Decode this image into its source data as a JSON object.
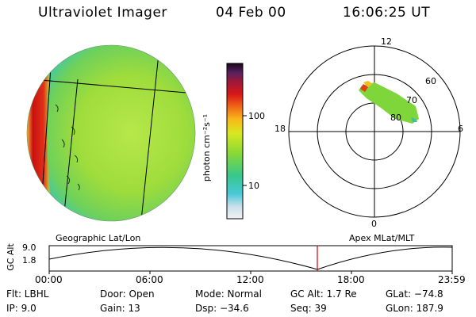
{
  "header": {
    "instrument": "Ultraviolet Imager",
    "date": "04 Feb 00",
    "time": "16:06:25 UT"
  },
  "colorbar": {
    "unit_label": "photon cm⁻²s⁻¹",
    "ticks": [
      "100",
      "10"
    ],
    "scale": "log"
  },
  "globe": {
    "caption": "Geographic Lat/Lon"
  },
  "polar": {
    "caption": "Apex MLat/MLT",
    "mlt_labels": [
      "12",
      "18",
      "6",
      "0"
    ],
    "mlat_labels": [
      "60",
      "70",
      "80"
    ]
  },
  "altitude_plot": {
    "ylabel": "GC Alt",
    "y_ticks": [
      "9.0",
      "1.8"
    ],
    "x_ticks": [
      "00:00",
      "06:00",
      "12:00",
      "18:00",
      "23:59"
    ],
    "marker_color": "#d00000"
  },
  "status": {
    "filter": "Flt: LBHL",
    "ip": "IP:  9.0",
    "door": "Door: Open",
    "gain": "Gain: 13",
    "mode": "Mode: Normal",
    "dsp": "Dsp:   −34.6",
    "gc_alt": "GC Alt: 1.7 Re",
    "seq": "Seq: 39",
    "glat": "GLat: −74.8",
    "glon": "GLon: 187.9"
  }
}
